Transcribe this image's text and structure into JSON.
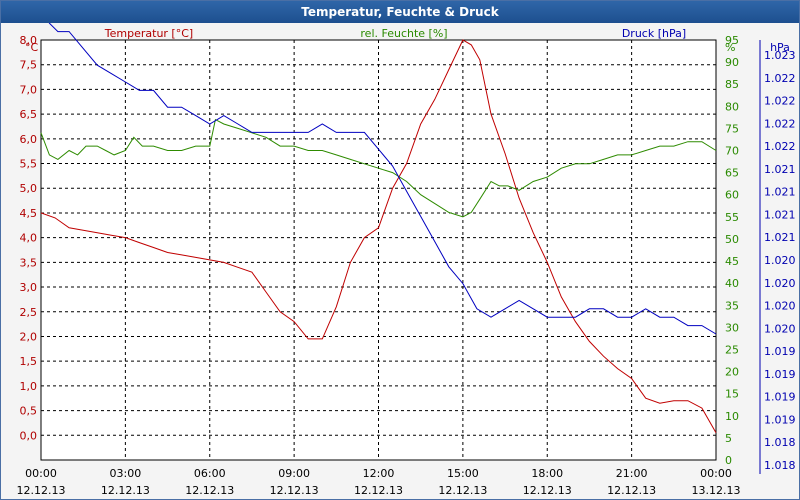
{
  "chart_data": {
    "type": "line",
    "title": "Temperatur, Feuchte & Druck",
    "x_ticks": [
      {
        "time": "00:00",
        "date": "12.12.13"
      },
      {
        "time": "03:00",
        "date": "12.12.13"
      },
      {
        "time": "06:00",
        "date": "12.12.13"
      },
      {
        "time": "09:00",
        "date": "12.12.13"
      },
      {
        "time": "12:00",
        "date": "12.12.13"
      },
      {
        "time": "15:00",
        "date": "12.12.13"
      },
      {
        "time": "18:00",
        "date": "12.12.13"
      },
      {
        "time": "21:00",
        "date": "12.12.13"
      },
      {
        "time": "00:00",
        "date": "13.12.13"
      }
    ],
    "x_range_hours": [
      0,
      24
    ],
    "axes": {
      "temperature": {
        "label": "Temperatur [°C]",
        "unit": "°C",
        "color": "#b00000",
        "min": -0.5,
        "max": 8.0,
        "ticks": [
          "8,0",
          "7,5",
          "7,0",
          "6,5",
          "6,0",
          "5,5",
          "5,0",
          "4,5",
          "4,0",
          "3,5",
          "3,0",
          "2,5",
          "2,0",
          "1,5",
          "1,0",
          "0,5",
          "0,0"
        ]
      },
      "humidity": {
        "label": "rel. Feuchte [%]",
        "unit": "%",
        "color": "#2a8a00",
        "min": 0,
        "max": 95,
        "ticks": [
          "95",
          "90",
          "85",
          "80",
          "75",
          "70",
          "65",
          "60",
          "55",
          "50",
          "45",
          "40",
          "35",
          "30",
          "25",
          "20",
          "15",
          "10",
          "5",
          "0"
        ]
      },
      "pressure": {
        "label": "Druck [hPa]",
        "unit": "hPa",
        "color": "#0000b0",
        "min": 1.018,
        "max": 1.023,
        "ticks": [
          "1.023",
          "1.022",
          "1.022",
          "1.022",
          "1.022",
          "1.021",
          "1.021",
          "1.021",
          "1.021",
          "1.020",
          "1.020",
          "1.020",
          "1.020",
          "1.019",
          "1.019",
          "1.019",
          "1.019",
          "1.018",
          "1.018"
        ]
      }
    },
    "series": [
      {
        "name": "Temperatur",
        "axis": "temperature",
        "color": "#c00000",
        "x": [
          0,
          0.5,
          1,
          1.5,
          2,
          2.5,
          3,
          3.5,
          4,
          4.5,
          5,
          5.5,
          6,
          6.5,
          7,
          7.5,
          8,
          8.5,
          9,
          9.5,
          10,
          10.5,
          11,
          11.5,
          12,
          12.5,
          13,
          13.5,
          14,
          14.5,
          15,
          15.3,
          15.6,
          16,
          16.5,
          17,
          17.5,
          18,
          18.5,
          19,
          19.5,
          20,
          20.5,
          21,
          21.5,
          22,
          22.5,
          23,
          23.5,
          24
        ],
        "values": [
          4.5,
          4.4,
          4.2,
          4.15,
          4.1,
          4.05,
          4.0,
          3.9,
          3.8,
          3.7,
          3.65,
          3.6,
          3.55,
          3.5,
          3.4,
          3.3,
          2.9,
          2.5,
          2.3,
          1.95,
          1.95,
          2.6,
          3.5,
          4.0,
          4.2,
          5.0,
          5.5,
          6.3,
          6.8,
          7.4,
          8.0,
          7.9,
          7.6,
          6.5,
          5.7,
          4.8,
          4.1,
          3.5,
          2.8,
          2.3,
          1.9,
          1.6,
          1.35,
          1.15,
          0.75,
          0.65,
          0.7,
          0.7,
          0.55,
          0.05
        ]
      },
      {
        "name": "rel. Feuchte",
        "axis": "humidity",
        "color": "#2e8b00",
        "x": [
          0,
          0.3,
          0.6,
          1,
          1.3,
          1.6,
          2,
          2.3,
          2.6,
          3,
          3.3,
          3.6,
          4,
          4.5,
          5,
          5.5,
          6,
          6.2,
          6.5,
          7,
          7.5,
          8,
          8.5,
          9,
          9.5,
          10,
          10.5,
          11,
          11.5,
          12,
          12.5,
          13,
          13.5,
          14,
          14.5,
          15,
          15.3,
          15.6,
          16,
          16.3,
          16.6,
          17,
          17.5,
          18,
          18.5,
          19,
          19.5,
          20,
          20.5,
          21,
          21.5,
          22,
          22.5,
          23,
          23.5,
          24
        ],
        "values": [
          74,
          69,
          68,
          70,
          69,
          71,
          71,
          70,
          69,
          70,
          73,
          71,
          71,
          70,
          70,
          71,
          71,
          77,
          76,
          75,
          74,
          73,
          71,
          71,
          70,
          70,
          69,
          68,
          67,
          66,
          65,
          63,
          60,
          58,
          56,
          55,
          56,
          59,
          63,
          62,
          62,
          61,
          63,
          64,
          66,
          67,
          67,
          68,
          69,
          69,
          70,
          71,
          71,
          72,
          72,
          70
        ]
      },
      {
        "name": "Druck",
        "axis": "pressure",
        "color": "#0000c0",
        "x": [
          0,
          0.3,
          0.6,
          1,
          1.5,
          2,
          2.5,
          3,
          3.5,
          4,
          4.5,
          5,
          5.5,
          6,
          6.5,
          7,
          7.5,
          8,
          8.5,
          9,
          9.5,
          10,
          10.5,
          11,
          11.5,
          12,
          12.5,
          13,
          13.5,
          14,
          14.5,
          15,
          15.5,
          16,
          16.5,
          17,
          17.5,
          18,
          18.5,
          19,
          19.5,
          20,
          20.5,
          21,
          21.5,
          22,
          22.5,
          23,
          23.5,
          24
        ],
        "values": [
          1.0234,
          1.0232,
          1.0231,
          1.0231,
          1.0229,
          1.0227,
          1.0226,
          1.0225,
          1.0224,
          1.0224,
          1.0222,
          1.0222,
          1.0221,
          1.022,
          1.0221,
          1.022,
          1.0219,
          1.0219,
          1.0219,
          1.0219,
          1.0219,
          1.022,
          1.0219,
          1.0219,
          1.0219,
          1.0217,
          1.0215,
          1.0212,
          1.0209,
          1.0206,
          1.0203,
          1.0201,
          1.0198,
          1.0197,
          1.0198,
          1.0199,
          1.0198,
          1.0197,
          1.0197,
          1.0197,
          1.0198,
          1.0198,
          1.0197,
          1.0197,
          1.0198,
          1.0197,
          1.0197,
          1.0196,
          1.0196,
          1.0195
        ]
      }
    ]
  }
}
